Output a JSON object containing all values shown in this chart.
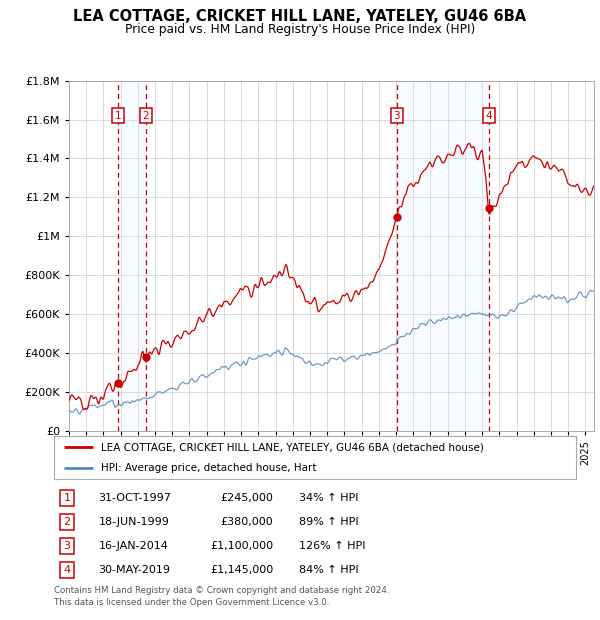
{
  "title": "LEA COTTAGE, CRICKET HILL LANE, YATELEY, GU46 6BA",
  "subtitle": "Price paid vs. HM Land Registry's House Price Index (HPI)",
  "sale_dates_display": [
    "31-OCT-1997",
    "18-JUN-1999",
    "16-JAN-2014",
    "30-MAY-2019"
  ],
  "sale_prices": [
    245000,
    380000,
    1100000,
    1145000
  ],
  "sale_years": [
    1997.83,
    1999.46,
    2014.04,
    2019.41
  ],
  "legend_property": "LEA COTTAGE, CRICKET HILL LANE, YATELEY, GU46 6BA (detached house)",
  "legend_hpi": "HPI: Average price, detached house, Hart",
  "footnote1": "Contains HM Land Registry data © Crown copyright and database right 2024.",
  "footnote2": "This data is licensed under the Open Government Licence v3.0.",
  "sale_info": [
    [
      "1",
      "31-OCT-1997",
      "£245,000",
      "34% ↑ HPI"
    ],
    [
      "2",
      "18-JUN-1999",
      "£380,000",
      "89% ↑ HPI"
    ],
    [
      "3",
      "16-JAN-2014",
      "£1,100,000",
      "126% ↑ HPI"
    ],
    [
      "4",
      "30-MAY-2019",
      "£1,145,000",
      "84% ↑ HPI"
    ]
  ],
  "xmin": 1995,
  "xmax": 2025.5,
  "ymin": 0,
  "ymax": 1800000,
  "red_color": "#cc0000",
  "blue_color": "#5588bb",
  "shade_color": "#ddeeff",
  "bg_color": "#ffffff",
  "grid_color": "#cccccc"
}
